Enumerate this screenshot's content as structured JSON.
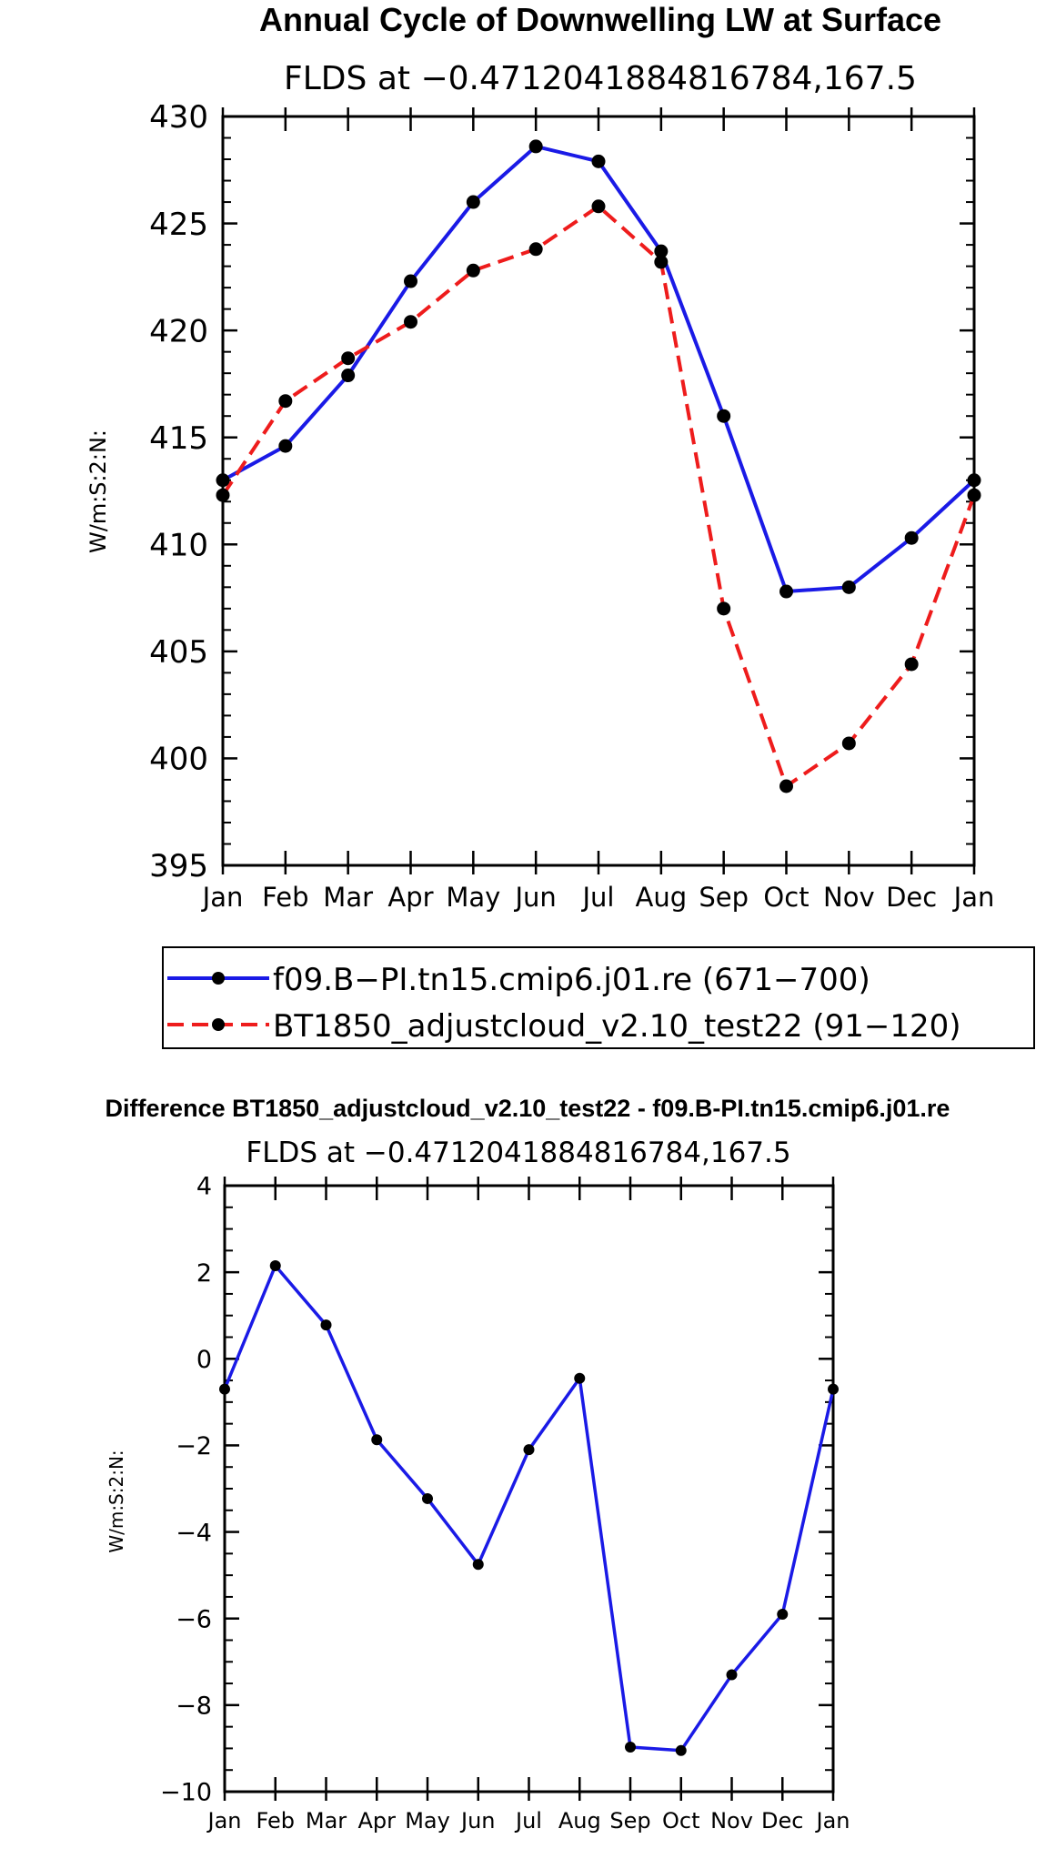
{
  "chart_data": [
    {
      "type": "line",
      "title": "Annual Cycle of Downwelling LW at Surface",
      "subtitle": "FLDS at −0.4712041884816784,167.5",
      "xlabel": "",
      "ylabel": "W/m:S:2:N:",
      "categories": [
        "Jan",
        "Feb",
        "Mar",
        "Apr",
        "May",
        "Jun",
        "Jul",
        "Aug",
        "Sep",
        "Oct",
        "Nov",
        "Dec",
        "Jan"
      ],
      "ylim": [
        395,
        430
      ],
      "yticks": [
        "395",
        "400",
        "405",
        "410",
        "415",
        "420",
        "425",
        "430"
      ],
      "series": [
        {
          "name": "f09.B−PI.tn15.cmip6.j01.re (671−700)",
          "color": "#1a1ae6",
          "dash": "solid",
          "values": [
            413.0,
            414.6,
            417.9,
            422.3,
            426.0,
            428.6,
            427.9,
            423.7,
            416.0,
            407.8,
            408.0,
            410.3,
            413.0
          ]
        },
        {
          "name": "BT1850_adjustcloud_v2.10_test22 (91−120)",
          "color": "#ee1c1c",
          "dash": "dashed",
          "values": [
            412.3,
            416.7,
            418.7,
            420.4,
            422.8,
            423.8,
            425.8,
            423.2,
            407.0,
            398.7,
            400.7,
            404.4,
            412.3
          ]
        }
      ],
      "legend": {
        "entries": [
          "f09.B−PI.tn15.cmip6.j01.re (671−700)",
          "BT1850_adjustcloud_v2.10_test22 (91−120)"
        ],
        "placement": "below"
      }
    },
    {
      "type": "line",
      "title": "Difference BT1850_adjustcloud_v2.10_test22 - f09.B-PI.tn15.cmip6.j01.re",
      "subtitle": "FLDS at −0.4712041884816784,167.5",
      "xlabel": "",
      "ylabel": "W/m:S:2:N:",
      "categories": [
        "Jan",
        "Feb",
        "Mar",
        "Apr",
        "May",
        "Jun",
        "Jul",
        "Aug",
        "Sep",
        "Oct",
        "Nov",
        "Dec",
        "Jan"
      ],
      "ylim": [
        -10,
        4
      ],
      "yticks": [
        "−10",
        "−8",
        "−6",
        "−4",
        "−2",
        "0",
        "2",
        "4"
      ],
      "series": [
        {
          "name": "Difference",
          "color": "#1a1ae6",
          "dash": "solid",
          "values": [
            -0.7,
            2.15,
            0.78,
            -1.87,
            -3.23,
            -4.75,
            -2.1,
            -0.45,
            -8.97,
            -9.05,
            -7.3,
            -5.9,
            -0.7
          ]
        }
      ]
    }
  ]
}
